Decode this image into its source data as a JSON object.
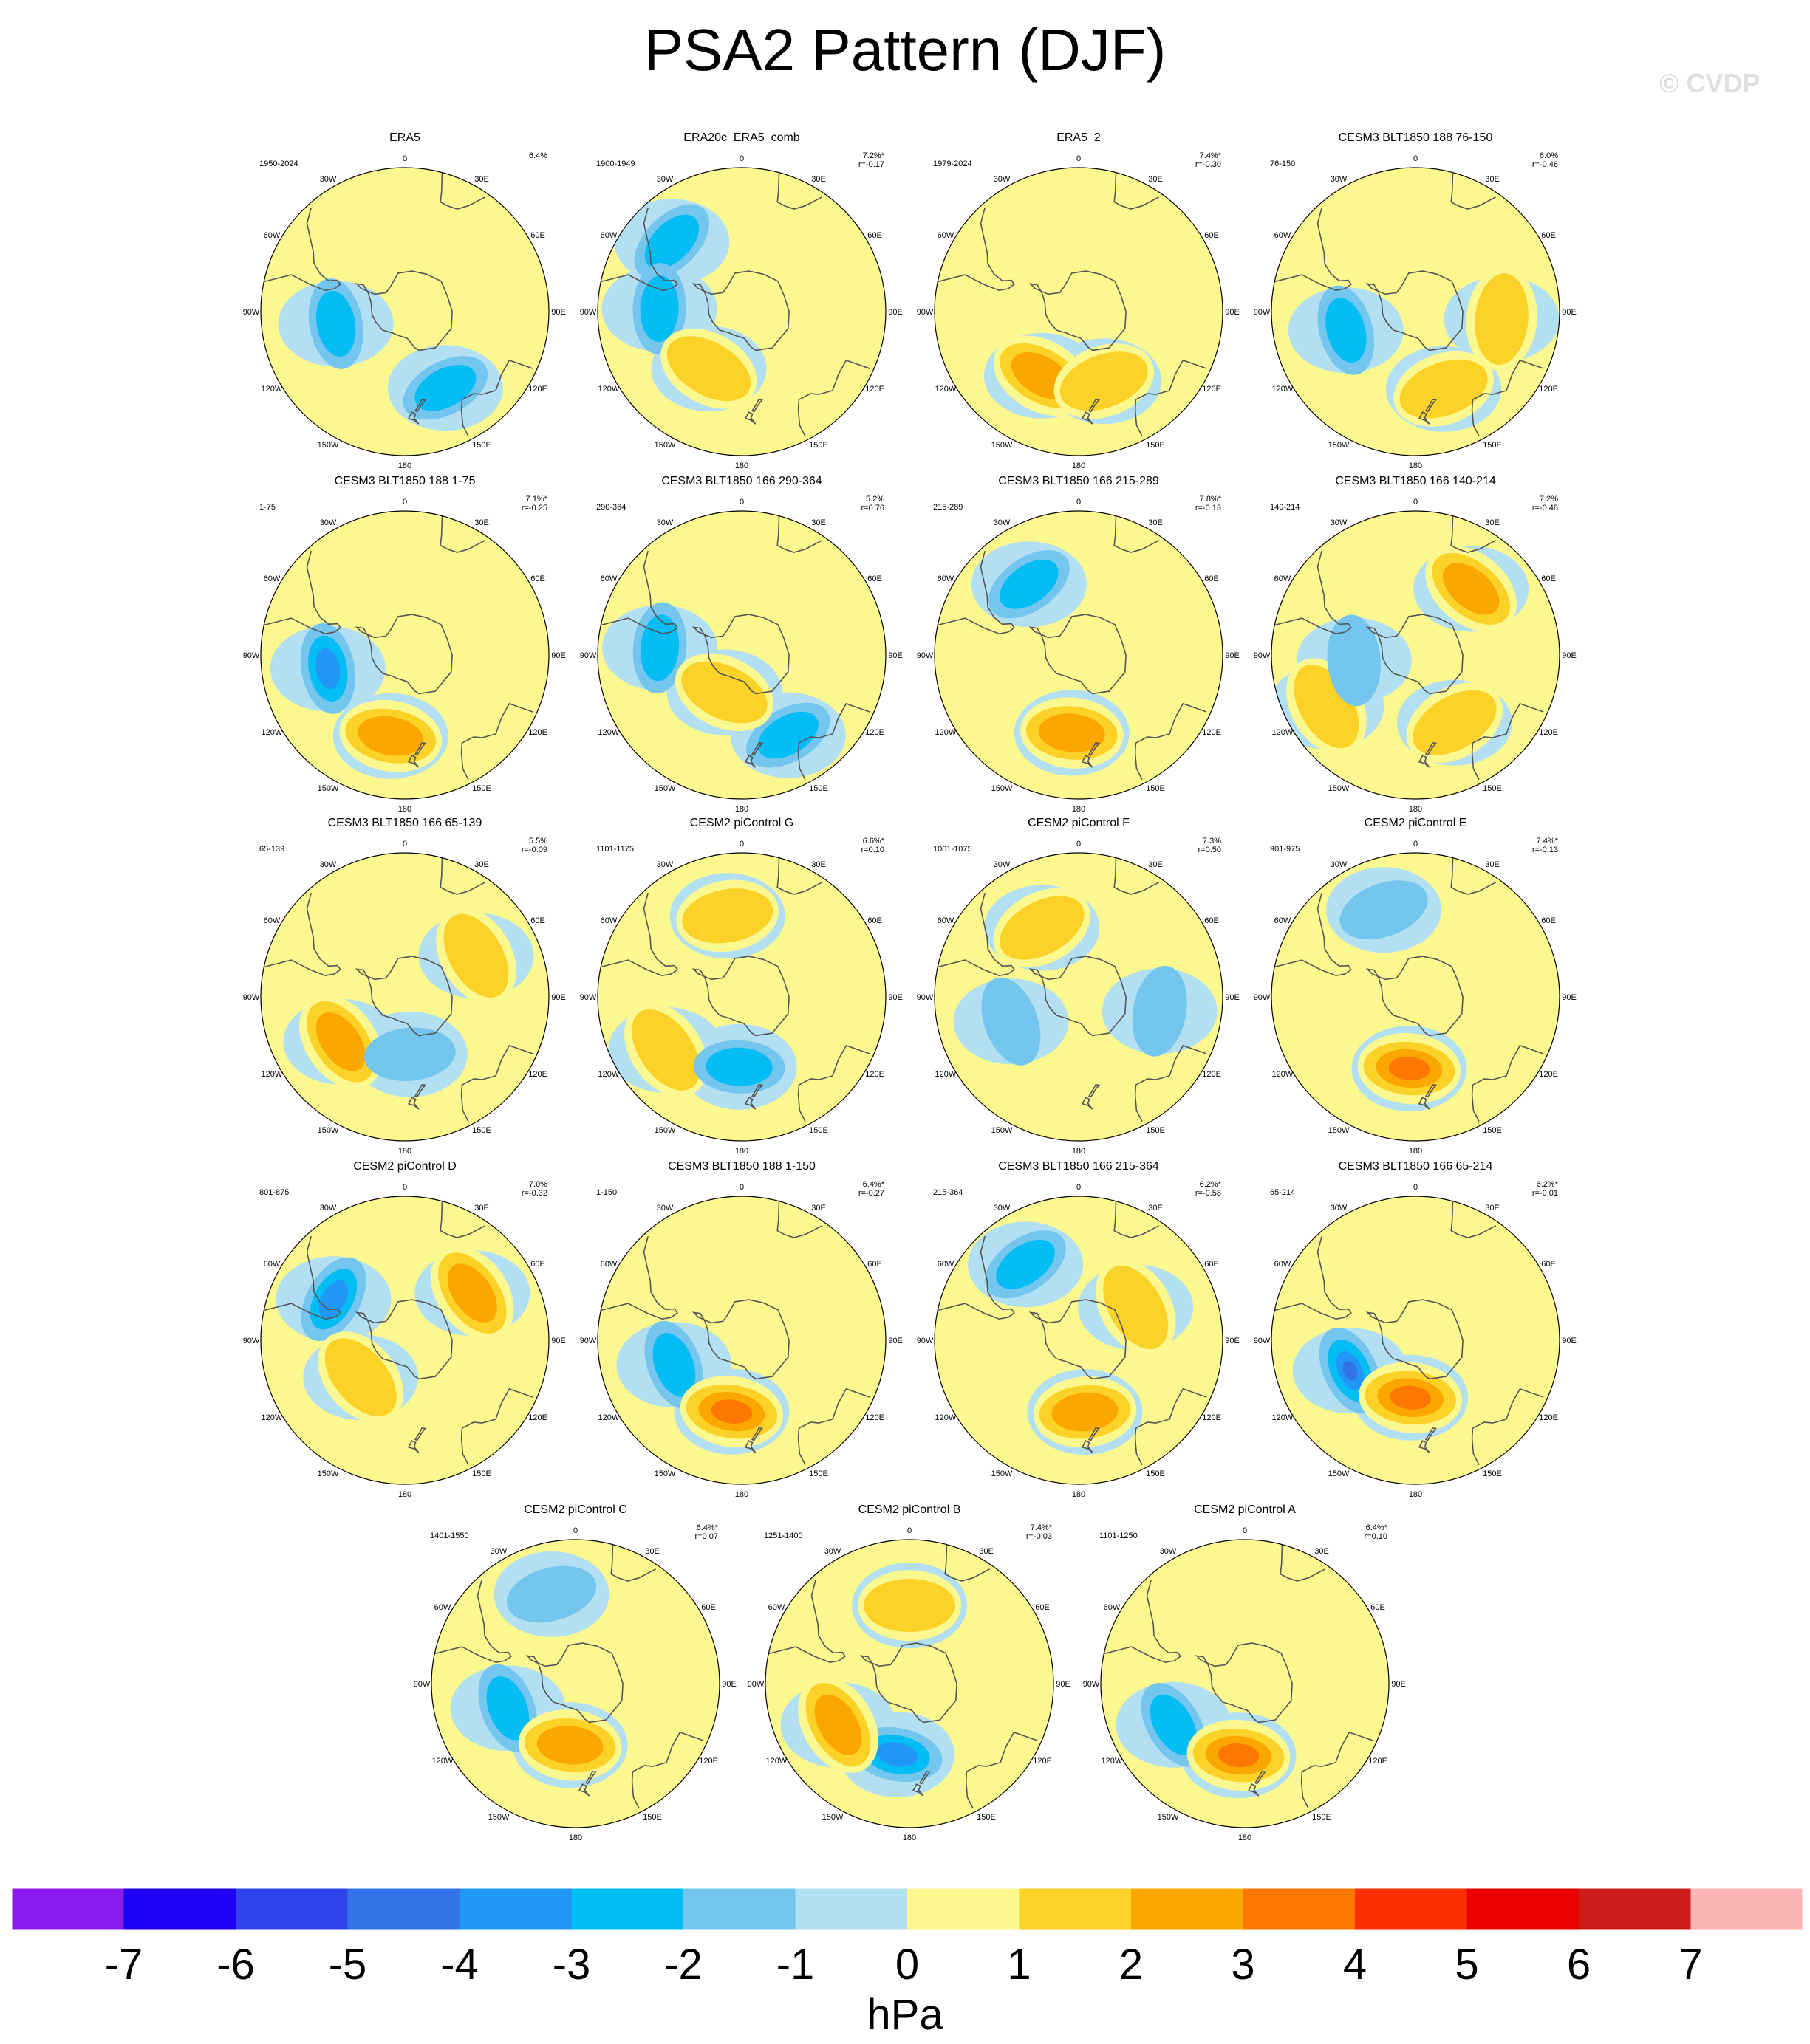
{
  "title": "PSA2 Pattern (DJF)",
  "watermark": "© CVDP",
  "colorbar": {
    "unit": "hPa",
    "ticks": [
      "-7",
      "-6",
      "-5",
      "-4",
      "-3",
      "-2",
      "-1",
      "0",
      "1",
      "2",
      "3",
      "4",
      "5",
      "6",
      "7"
    ],
    "levels": [
      -7,
      -6,
      -5,
      -4,
      -3,
      -2,
      -1,
      0,
      1,
      2,
      3,
      4,
      5,
      6,
      7
    ],
    "colors": [
      "#8a1ced",
      "#1f00f5",
      "#2e44e8",
      "#3273e7",
      "#2196f6",
      "#04bdf5",
      "#74c6ef",
      "#b3dff2",
      "#fcf890",
      "#fcd228",
      "#fca700",
      "#fc7800",
      "#fc2f00",
      "#ea0000",
      "#cc1d1d",
      "#fcb5b5"
    ]
  },
  "map_labels": {
    "lon_top": "0",
    "lon_bottom": "180",
    "left": [
      "30W",
      "60W",
      "90W",
      "120W",
      "150W"
    ],
    "right": [
      "30E",
      "60E",
      "90E",
      "120E",
      "150E"
    ]
  },
  "chart_data": {
    "type": "heatmap",
    "projection": "south polar stereographic",
    "variable": "sea level pressure anomaly (hPa)",
    "panels": [
      {
        "name": "ERA5",
        "period": "1950-2024",
        "pct": "6.4%",
        "r": "",
        "blobs": [
          {
            "lon": -100,
            "lat": -56,
            "v": -2
          },
          {
            "lon": 152,
            "lat": -48,
            "v": -2
          }
        ]
      },
      {
        "name": "ERA20c_ERA5_comb",
        "period": "1900-1949",
        "pct": "7.2%*",
        "r": "r=-0.17",
        "blobs": [
          {
            "lon": -45,
            "lat": -42,
            "v": -2
          },
          {
            "lon": -88,
            "lat": -50,
            "v": -2
          },
          {
            "lon": -150,
            "lat": -58,
            "v": 1
          }
        ]
      },
      {
        "name": "ERA5_2",
        "period": "1979-2024",
        "pct": "7.4%*",
        "r": "r=-0.30",
        "blobs": [
          {
            "lon": -150,
            "lat": -54,
            "v": 2
          },
          {
            "lon": 160,
            "lat": -54,
            "v": 1
          }
        ]
      },
      {
        "name": "CESM3 BLT1850 188 76-150",
        "period": "76-150",
        "pct": "6.0%",
        "r": "r=-0.46",
        "blobs": [
          {
            "lon": -105,
            "lat": -55,
            "v": -2
          },
          {
            "lon": 160,
            "lat": -50,
            "v": 1
          },
          {
            "lon": 95,
            "lat": -48,
            "v": 1
          }
        ]
      },
      {
        "name": "CESM3 BLT1850 188 1-75",
        "period": "1-75",
        "pct": "7.1%*",
        "r": "r=-0.25",
        "blobs": [
          {
            "lon": -100,
            "lat": -52,
            "v": -3
          },
          {
            "lon": -170,
            "lat": -50,
            "v": 2
          }
        ]
      },
      {
        "name": "CESM3 BLT1850 166 290-364",
        "period": "290-364",
        "pct": "5.2%",
        "r": "r=0.76",
        "blobs": [
          {
            "lon": -85,
            "lat": -50,
            "v": -2
          },
          {
            "lon": 150,
            "lat": -45,
            "v": -2
          },
          {
            "lon": -155,
            "lat": -70,
            "v": 1
          }
        ]
      },
      {
        "name": "CESM3 BLT1850 166 215-289",
        "period": "215-289",
        "pct": "7.8%*",
        "r": "r=-0.13",
        "blobs": [
          {
            "lon": -175,
            "lat": -52,
            "v": 2
          },
          {
            "lon": -35,
            "lat": -48,
            "v": -2
          }
        ]
      },
      {
        "name": "CESM3 BLT1850 166 140-214",
        "period": "140-214",
        "pct": "7.2%",
        "r": "r=-0.48",
        "blobs": [
          {
            "lon": 40,
            "lat": -48,
            "v": 2
          },
          {
            "lon": -120,
            "lat": -40,
            "v": 1
          },
          {
            "lon": 150,
            "lat": -52,
            "v": 1
          },
          {
            "lon": -95,
            "lat": -60,
            "v": -1
          }
        ]
      },
      {
        "name": "CESM3 BLT1850 166 65-139",
        "period": "65-139",
        "pct": "5.5%",
        "r": "r=-0.09",
        "blobs": [
          {
            "lon": -125,
            "lat": -52,
            "v": 2
          },
          {
            "lon": 60,
            "lat": -50,
            "v": 1
          },
          {
            "lon": 175,
            "lat": -62,
            "v": -1
          }
        ]
      },
      {
        "name": "CESM2 piControl G",
        "period": "1101-1175",
        "pct": "6.6%*",
        "r": "r=0.10",
        "blobs": [
          {
            "lon": -10,
            "lat": -50,
            "v": 1
          },
          {
            "lon": -125,
            "lat": -45,
            "v": 1
          },
          {
            "lon": -178,
            "lat": -56,
            "v": -2
          }
        ]
      },
      {
        "name": "CESM2 piControl F",
        "period": "1001-1075",
        "pct": "7.3%",
        "r": "r=0.50",
        "blobs": [
          {
            "lon": -28,
            "lat": -52,
            "v": 1
          },
          {
            "lon": -110,
            "lat": -55,
            "v": -1
          },
          {
            "lon": 100,
            "lat": -50,
            "v": -1
          }
        ]
      },
      {
        "name": "CESM2 piControl E",
        "period": "901-975",
        "pct": "7.4%*",
        "r": "r=-0.13",
        "blobs": [
          {
            "lon": -175,
            "lat": -55,
            "v": 3
          },
          {
            "lon": -20,
            "lat": -45,
            "v": -1
          }
        ]
      },
      {
        "name": "CESM2 piControl D",
        "period": "801-875",
        "pct": "7.0%",
        "r": "r=-0.32",
        "blobs": [
          {
            "lon": -60,
            "lat": -50,
            "v": -3
          },
          {
            "lon": 55,
            "lat": -50,
            "v": 2
          },
          {
            "lon": -130,
            "lat": -62,
            "v": 1
          }
        ]
      },
      {
        "name": "CESM3 BLT1850 188 1-150",
        "period": "1-150",
        "pct": "6.4%*",
        "r": "r=-0.27",
        "blobs": [
          {
            "lon": -110,
            "lat": -55,
            "v": -2
          },
          {
            "lon": -172,
            "lat": -55,
            "v": 3
          }
        ]
      },
      {
        "name": "CESM3 BLT1850 166 215-364",
        "period": "215-364",
        "pct": "6.2%*",
        "r": "r=-0.58",
        "blobs": [
          {
            "lon": -35,
            "lat": -45,
            "v": -2
          },
          {
            "lon": 175,
            "lat": -55,
            "v": 2
          },
          {
            "lon": 60,
            "lat": -58,
            "v": 1
          }
        ]
      },
      {
        "name": "CESM3 BLT1850 166 65-214",
        "period": "65-214",
        "pct": "6.2%*",
        "r": "r=-0.01",
        "blobs": [
          {
            "lon": -115,
            "lat": -55,
            "v": -4
          },
          {
            "lon": -175,
            "lat": -62,
            "v": 3
          }
        ]
      },
      {
        "name": "CESM2 piControl C",
        "period": "1401-1550",
        "pct": "6.4%*",
        "r": "r=0.07",
        "blobs": [
          {
            "lon": -110,
            "lat": -55,
            "v": -2
          },
          {
            "lon": -175,
            "lat": -60,
            "v": 2
          },
          {
            "lon": -15,
            "lat": -45,
            "v": -1
          }
        ]
      },
      {
        "name": "CESM2 piControl B",
        "period": "1251-1400",
        "pct": "7.4%*",
        "r": "r=-0.03",
        "blobs": [
          {
            "lon": -170,
            "lat": -55,
            "v": -3
          },
          {
            "lon": -120,
            "lat": -50,
            "v": 2
          },
          {
            "lon": 0,
            "lat": -52,
            "v": 1
          }
        ]
      },
      {
        "name": "CESM2 piControl A",
        "period": "1101-1250",
        "pct": "6.4%*",
        "r": "r=0.10",
        "blobs": [
          {
            "lon": -120,
            "lat": -50,
            "v": -2
          },
          {
            "lon": -175,
            "lat": -55,
            "v": 3
          }
        ]
      }
    ]
  }
}
